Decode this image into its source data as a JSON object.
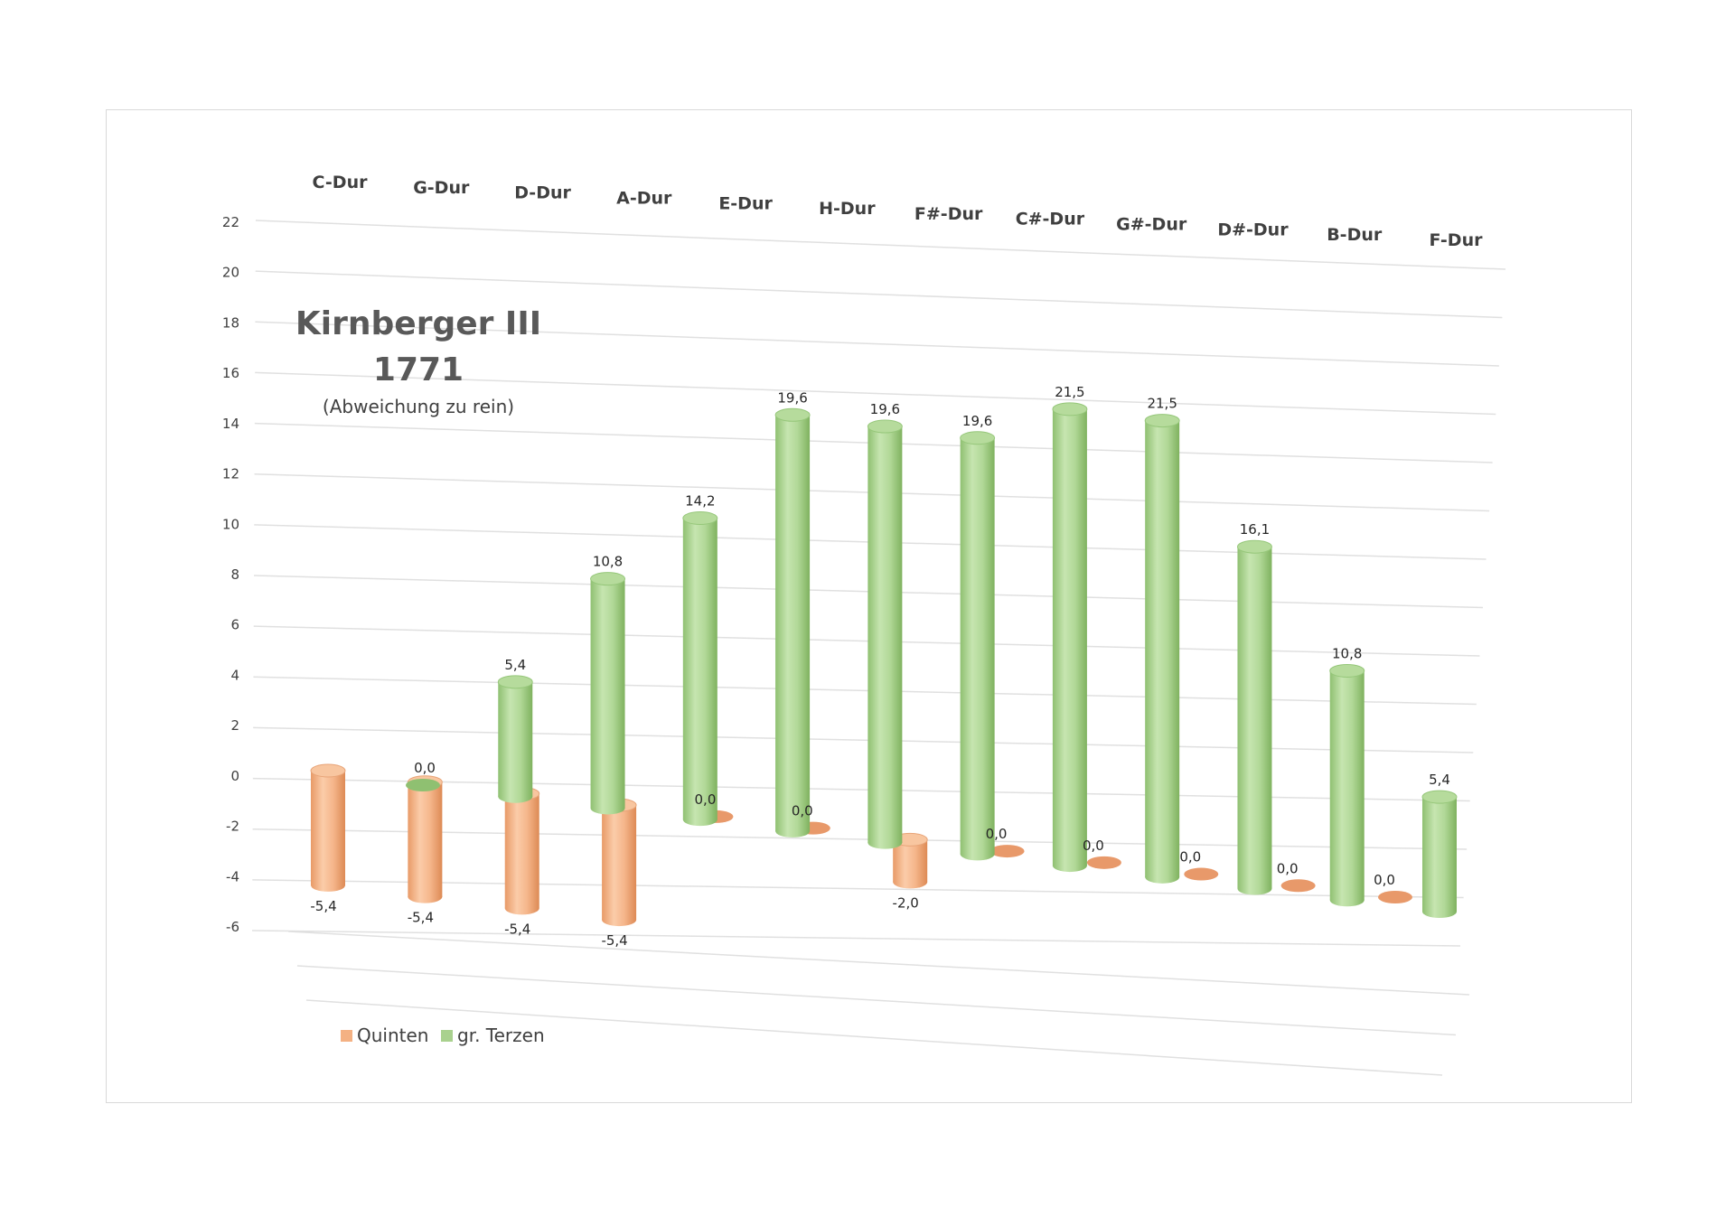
{
  "chart_data": {
    "type": "bar",
    "variant": "3d-cylinder",
    "title": "Kirnberger III",
    "title_line2": "1771",
    "subtitle": "(Abweichung zu rein)",
    "categories": [
      "C-Dur",
      "G-Dur",
      "D-Dur",
      "A-Dur",
      "E-Dur",
      "H-Dur",
      "F#-Dur",
      "C#-Dur",
      "G#-Dur",
      "D#-Dur",
      "B-Dur",
      "F-Dur"
    ],
    "series": [
      {
        "name": "Quinten",
        "color": "#f4b183",
        "values": [
          -5.4,
          -5.4,
          -5.4,
          -5.4,
          0.0,
          0.0,
          -2.0,
          0.0,
          0.0,
          0.0,
          0.0,
          0.0
        ],
        "labels": [
          "-5,4",
          "-5,4",
          "-5,4",
          "-5,4",
          "0,0",
          "0,0",
          "-2,0",
          "0,0",
          "0,0",
          "0,0",
          "0,0",
          "0,0"
        ]
      },
      {
        "name": "gr. Terzen",
        "color": "#a9d18e",
        "values": [
          0.0,
          5.4,
          10.8,
          14.2,
          19.6,
          19.6,
          19.6,
          21.5,
          21.5,
          16.1,
          10.8,
          5.4
        ],
        "labels": [
          "0,0",
          "5,4",
          "10,8",
          "14,2",
          "19,6",
          "19,6",
          "19,6",
          "21,5",
          "21,5",
          "16,1",
          "10,8",
          "5,4"
        ]
      }
    ],
    "ylim": [
      -6,
      22
    ],
    "yticks": [
      22,
      20,
      18,
      16,
      14,
      12,
      10,
      8,
      6,
      4,
      2,
      0,
      -2,
      -4,
      -6
    ],
    "grid": true,
    "legend_position": "bottom-left",
    "xlabel": "",
    "ylabel": ""
  }
}
